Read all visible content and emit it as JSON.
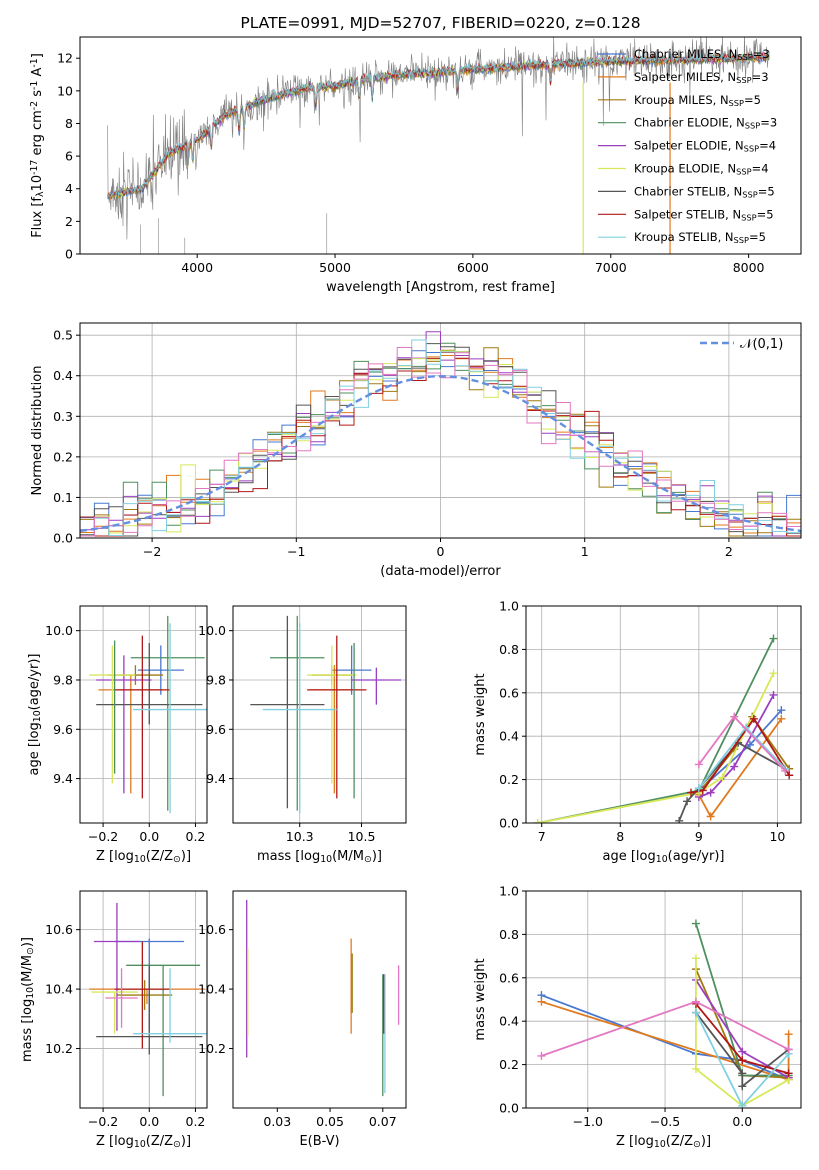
{
  "page_title": "PLATE=0991, MJD=52707, FIBERID=0220, z=0.128",
  "colors": {
    "chabrier_miles": "#4878d0",
    "salpeter_miles": "#e07a1f",
    "kroupa_miles": "#a07a10",
    "chabrier_elodie": "#4f8f5f",
    "salpeter_elodie": "#9b3fbf",
    "kroupa_elodie": "#d8e85a",
    "chabrier_stelib": "#555555",
    "salpeter_stelib": "#b01818",
    "kroupa_stelib": "#80d0e0",
    "pink": "#e377c2",
    "observed": "#7f7f7f",
    "normal": "#6490e0"
  },
  "chart_data": [
    {
      "id": "spectrum",
      "type": "line",
      "title": "PLATE=0991, MJD=52707, FIBERID=0220, z=0.128",
      "xlabel": "wavelength [Angstrom, rest frame]",
      "ylabel": "Flux [f$_\\lambda$10$^{-17}$ erg cm$^{-2}$ s$^{-1}$ A$^{-1}$]",
      "xlim": [
        3150,
        8380
      ],
      "ylim": [
        0,
        13.3
      ],
      "xticks": [
        4000,
        5000,
        6000,
        7000,
        8000
      ],
      "yticks": [
        0,
        2,
        4,
        6,
        8,
        10,
        12
      ],
      "legend_position": "upper-right",
      "legend": [
        {
          "label": "Chabrier MILES, N$_{SSP}$=3",
          "color": "#4878d0"
        },
        {
          "label": "Salpeter MILES, N$_{SSP}$=3",
          "color": "#e07a1f"
        },
        {
          "label": "Kroupa MILES, N$_{SSP}$=5",
          "color": "#a07a10"
        },
        {
          "label": "Chabrier ELODIE, N$_{SSP}$=3",
          "color": "#4f8f5f"
        },
        {
          "label": "Salpeter ELODIE, N$_{SSP}$=4",
          "color": "#9b3fbf"
        },
        {
          "label": "Kroupa ELODIE, N$_{SSP}$=4",
          "color": "#d8e85a"
        },
        {
          "label": "Chabrier STELIB, N$_{SSP}$=5",
          "color": "#555555"
        },
        {
          "label": "Salpeter STELIB, N$_{SSP}$=5",
          "color": "#b01818"
        },
        {
          "label": "Kroupa STELIB, N$_{SSP}$=5",
          "color": "#80d0e0"
        }
      ],
      "continuum_anchors": [
        [
          3350,
          3.6
        ],
        [
          3600,
          4.0
        ],
        [
          3800,
          6.2
        ],
        [
          4000,
          7.0
        ],
        [
          4200,
          8.5
        ],
        [
          4500,
          9.5
        ],
        [
          4800,
          10.2
        ],
        [
          5000,
          10.3
        ],
        [
          5200,
          10.7
        ],
        [
          5500,
          11.0
        ],
        [
          6000,
          11.3
        ],
        [
          6500,
          11.6
        ],
        [
          7000,
          11.8
        ],
        [
          7500,
          11.9
        ],
        [
          8000,
          12.0
        ],
        [
          8150,
          12.1
        ]
      ],
      "drop_lines": [
        {
          "x": 6800,
          "color": "#d8e85a"
        },
        {
          "x": 7430,
          "color": "#e07a1f"
        }
      ]
    },
    {
      "id": "residuals",
      "type": "line",
      "xlabel": "(data-model)/error",
      "ylabel": "Normed distribution",
      "xlim": [
        -2.5,
        2.5
      ],
      "ylim": [
        0,
        0.53
      ],
      "xticks": [
        -2,
        -1,
        0,
        1,
        2
      ],
      "yticks": [
        0.0,
        0.1,
        0.2,
        0.3,
        0.4,
        0.5
      ],
      "grid": true,
      "legend_position": "upper-right",
      "legend": [
        {
          "label": "$\\mathcal{N}(0,1)$",
          "color": "#6490e0",
          "style": "dashed"
        }
      ],
      "normal_curve": {
        "mean": 0,
        "std": 1
      },
      "hist_bin_width": 0.1,
      "hist_colors": [
        "#4878d0",
        "#e07a1f",
        "#a07a10",
        "#4f8f5f",
        "#9b3fbf",
        "#d8e85a",
        "#555555",
        "#b01818",
        "#80d0e0",
        "#e377c2"
      ]
    },
    {
      "id": "age_vs_Z",
      "type": "scatter",
      "xlabel": "Z [log$_{10}$(Z/Z$_\\odot$)]",
      "ylabel": "age  [log$_{10}$(age/yr)]",
      "xlim": [
        -0.3,
        0.25
      ],
      "ylim": [
        9.22,
        10.1
      ],
      "xticks": [
        -0.2,
        0.0,
        0.2
      ],
      "yticks": [
        9.4,
        9.6,
        9.8,
        10.0
      ],
      "grid": true,
      "points": [
        {
          "x": 0.05,
          "y": 9.84,
          "xerr": 0.1,
          "yerr_low": 0.1,
          "yerr_high": 0.1,
          "color": "#4878d0"
        },
        {
          "x": -0.08,
          "y": 9.76,
          "xerr": 0.14,
          "yerr_low": 0.42,
          "yerr_high": 0.06,
          "color": "#e07a1f"
        },
        {
          "x": -0.06,
          "y": 9.82,
          "xerr": 0.12,
          "yerr_low": 0.04,
          "yerr_high": 0.04,
          "color": "#a07a10"
        },
        {
          "x": 0.08,
          "y": 9.89,
          "xerr": 0.16,
          "yerr_low": 0.62,
          "yerr_high": 0.17,
          "color": "#4f8f5f"
        },
        {
          "x": -0.11,
          "y": 9.8,
          "xerr": 0.12,
          "yerr_low": 0.46,
          "yerr_high": 0.1,
          "color": "#9b3fbf"
        },
        {
          "x": -0.16,
          "y": 9.82,
          "xerr": 0.1,
          "yerr_low": 0.44,
          "yerr_high": 0.12,
          "color": "#d8e85a"
        },
        {
          "x": 0.0,
          "y": 9.7,
          "xerr": 0.23,
          "yerr_low": 0.08,
          "yerr_high": 0.25,
          "color": "#555555"
        },
        {
          "x": -0.03,
          "y": 9.76,
          "xerr": 0.12,
          "yerr_low": 0.44,
          "yerr_high": 0.22,
          "color": "#b01818"
        },
        {
          "x": 0.09,
          "y": 9.68,
          "xerr": 0.16,
          "yerr_low": 0.42,
          "yerr_high": 0.35,
          "color": "#80d0e0"
        },
        {
          "x": -0.15,
          "y": 9.92,
          "xerr": 0.0,
          "yerr_low": 0.5,
          "yerr_high": 0.04,
          "color": "#4f8f5f"
        }
      ]
    },
    {
      "id": "age_vs_mass",
      "type": "scatter",
      "xlabel": "mass [log$_{10}$(M/M$_\\odot$)]",
      "ylabel": "",
      "xlim": [
        9.98,
        10.68
      ],
      "ylim": [
        9.22,
        10.1
      ],
      "xticks": [
        10.25,
        10.5
      ],
      "yticks": [
        9.4,
        9.6,
        9.8,
        10.0
      ],
      "grid": true,
      "points": [
        {
          "x": 10.46,
          "y": 9.84,
          "xerr": 0.08,
          "yerr_low": 0.1,
          "yerr_high": 0.1,
          "color": "#4878d0"
        },
        {
          "x": 10.39,
          "y": 9.76,
          "xerr": 0.1,
          "yerr_low": 0.42,
          "yerr_high": 0.1,
          "color": "#e07a1f"
        },
        {
          "x": 10.38,
          "y": 9.82,
          "xerr": 0.08,
          "yerr_low": 0.04,
          "yerr_high": 0.04,
          "color": "#a07a10"
        },
        {
          "x": 10.24,
          "y": 9.89,
          "xerr": 0.11,
          "yerr_low": 0.62,
          "yerr_high": 0.17,
          "color": "#4f8f5f"
        },
        {
          "x": 10.56,
          "y": 9.8,
          "xerr": 0.1,
          "yerr_low": 0.1,
          "yerr_high": 0.05,
          "color": "#9b3fbf"
        },
        {
          "x": 10.38,
          "y": 9.82,
          "xerr": 0.1,
          "yerr_low": 0.44,
          "yerr_high": 0.12,
          "color": "#d8e85a"
        },
        {
          "x": 10.2,
          "y": 9.7,
          "xerr": 0.15,
          "yerr_low": 0.42,
          "yerr_high": 0.36,
          "color": "#555555"
        },
        {
          "x": 10.4,
          "y": 9.76,
          "xerr": 0.12,
          "yerr_low": 0.44,
          "yerr_high": 0.22,
          "color": "#b01818"
        },
        {
          "x": 10.25,
          "y": 9.68,
          "xerr": 0.15,
          "yerr_low": 0.42,
          "yerr_high": 0.35,
          "color": "#80d0e0"
        },
        {
          "x": 10.47,
          "y": 9.8,
          "xerr": 0.0,
          "yerr_low": 0.48,
          "yerr_high": 0.15,
          "color": "#4f8f5f"
        }
      ]
    },
    {
      "id": "weight_vs_age",
      "type": "line",
      "xlabel": "age  [log$_{10}$(age/yr)]",
      "ylabel": "mass weight",
      "xlim": [
        6.8,
        10.3
      ],
      "ylim": [
        0,
        1.0
      ],
      "xticks": [
        7,
        8,
        9,
        10
      ],
      "yticks": [
        0.0,
        0.2,
        0.4,
        0.6,
        0.8,
        1.0
      ],
      "grid": true,
      "series": [
        {
          "color": "#4878d0",
          "x": [
            9.0,
            9.65,
            10.05
          ],
          "y": [
            0.15,
            0.36,
            0.52
          ]
        },
        {
          "color": "#e07a1f",
          "x": [
            9.0,
            9.15,
            10.05
          ],
          "y": [
            0.13,
            0.03,
            0.48
          ]
        },
        {
          "color": "#a07a10",
          "x": [
            9.0,
            9.45,
            9.68,
            10.15
          ],
          "y": [
            0.14,
            0.34,
            0.49,
            0.25
          ]
        },
        {
          "color": "#4f8f5f",
          "x": [
            6.95,
            9.0,
            9.95
          ],
          "y": [
            0.0,
            0.15,
            0.85
          ]
        },
        {
          "color": "#9b3fbf",
          "x": [
            9.0,
            9.15,
            9.45,
            9.95
          ],
          "y": [
            0.12,
            0.14,
            0.26,
            0.59
          ]
        },
        {
          "color": "#d8e85a",
          "x": [
            6.95,
            9.0,
            9.3,
            9.95
          ],
          "y": [
            0.0,
            0.14,
            0.21,
            0.69
          ]
        },
        {
          "color": "#555555",
          "x": [
            8.75,
            8.85,
            9.0,
            9.5,
            10.1
          ],
          "y": [
            0.01,
            0.1,
            0.16,
            0.37,
            0.25
          ]
        },
        {
          "color": "#b01818",
          "x": [
            8.9,
            9.05,
            9.7,
            10.15
          ],
          "y": [
            0.14,
            0.15,
            0.48,
            0.22
          ]
        },
        {
          "color": "#80d0e0",
          "x": [
            9.0,
            9.6,
            10.1
          ],
          "y": [
            0.16,
            0.44,
            0.25
          ]
        },
        {
          "color": "#e377c2",
          "x": [
            9.0,
            9.45,
            10.1
          ],
          "y": [
            0.27,
            0.49,
            0.24
          ]
        }
      ]
    },
    {
      "id": "mass_vs_Z",
      "type": "scatter",
      "xlabel": "Z [log$_{10}$(Z/Z$_\\odot$)]",
      "ylabel": "mass [log$_{10}$(M/M$_\\odot$)]",
      "xlim": [
        -0.3,
        0.25
      ],
      "ylim": [
        10.0,
        10.73
      ],
      "xticks": [
        -0.2,
        0.0,
        0.2
      ],
      "yticks": [
        10.2,
        10.4,
        10.6
      ],
      "grid": true,
      "points": [
        {
          "x": 0.0,
          "y": 10.56,
          "xerr": 0.15,
          "yerr_low": 0.3,
          "yerr_high": 0.01,
          "color": "#4878d0"
        },
        {
          "x": -0.01,
          "y": 10.4,
          "xerr": 0.25,
          "yerr_low": 0.05,
          "yerr_high": 0.0,
          "color": "#e07a1f"
        },
        {
          "x": -0.02,
          "y": 10.38,
          "xerr": 0.12,
          "yerr_low": 0.05,
          "yerr_high": 0.05,
          "color": "#a07a10"
        },
        {
          "x": 0.06,
          "y": 10.48,
          "xerr": 0.16,
          "yerr_low": 0.44,
          "yerr_high": 0.0,
          "color": "#4f8f5f"
        },
        {
          "x": -0.14,
          "y": 10.56,
          "xerr": 0.1,
          "yerr_low": 0.3,
          "yerr_high": 0.13,
          "color": "#9b3fbf"
        },
        {
          "x": -0.15,
          "y": 10.39,
          "xerr": 0.1,
          "yerr_low": 0.14,
          "yerr_high": 0.0,
          "color": "#d8e85a"
        },
        {
          "x": 0.0,
          "y": 10.24,
          "xerr": 0.23,
          "yerr_low": 0.06,
          "yerr_high": 0.24,
          "color": "#555555"
        },
        {
          "x": -0.03,
          "y": 10.4,
          "xerr": 0.12,
          "yerr_low": 0.2,
          "yerr_high": 0.16,
          "color": "#b01818"
        },
        {
          "x": 0.09,
          "y": 10.25,
          "xerr": 0.16,
          "yerr_low": 0.03,
          "yerr_high": 0.22,
          "color": "#80d0e0"
        },
        {
          "x": -0.12,
          "y": 10.37,
          "xerr": 0.07,
          "yerr_low": 0.1,
          "yerr_high": 0.1,
          "color": "#e377c2"
        }
      ]
    },
    {
      "id": "mass_vs_EBV",
      "type": "scatter",
      "xlabel": "E(B-V)",
      "ylabel": "",
      "xlim": [
        0.004,
        0.086
      ],
      "ylim": [
        10.0,
        10.73
      ],
      "xticks": [
        0.025,
        0.05,
        0.075
      ],
      "yticks": [
        10.2,
        10.4,
        10.6
      ],
      "grid": false,
      "points": [
        {
          "x": 0.0105,
          "y": 10.4,
          "yerr_low": 0.23,
          "yerr_high": 0.3,
          "color": "#9b3fbf"
        },
        {
          "x": 0.011,
          "y": 10.38,
          "yerr_low": 0.14,
          "yerr_high": 0.16,
          "color": "#d8e85a"
        },
        {
          "x": 0.06,
          "y": 10.4,
          "yerr_low": 0.15,
          "yerr_high": 0.17,
          "color": "#e07a1f"
        },
        {
          "x": 0.0605,
          "y": 10.42,
          "yerr_low": 0.1,
          "yerr_high": 0.1,
          "color": "#a07a10"
        },
        {
          "x": 0.075,
          "y": 10.3,
          "yerr_low": 0.26,
          "yerr_high": 0.15,
          "color": "#4f8f5f"
        },
        {
          "x": 0.0755,
          "y": 10.35,
          "yerr_low": 0.1,
          "yerr_high": 0.1,
          "color": "#b01818"
        },
        {
          "x": 0.076,
          "y": 10.25,
          "yerr_low": 0.2,
          "yerr_high": 0.2,
          "color": "#80d0e0"
        },
        {
          "x": 0.0825,
          "y": 10.38,
          "yerr_low": 0.1,
          "yerr_high": 0.1,
          "color": "#e377c2"
        }
      ]
    },
    {
      "id": "weight_vs_Z",
      "type": "line",
      "xlabel": "Z [log$_{10}$(Z/Z$_\\odot$)]",
      "ylabel": "mass weight",
      "xlim": [
        -1.4,
        0.38
      ],
      "ylim": [
        0,
        1.0
      ],
      "xticks": [
        -1.0,
        -0.5,
        0.0
      ],
      "yticks": [
        0.0,
        0.2,
        0.4,
        0.6,
        0.8,
        1.0
      ],
      "grid": true,
      "series": [
        {
          "color": "#4878d0",
          "x": [
            -1.3,
            -0.3,
            0.0,
            0.3
          ],
          "y": [
            0.52,
            0.25,
            0.22,
            0.13
          ]
        },
        {
          "color": "#e07a1f",
          "x": [
            -1.3,
            0.3,
            0.3
          ],
          "y": [
            0.49,
            0.13,
            0.34
          ]
        },
        {
          "color": "#a07a10",
          "x": [
            -0.3,
            0.0,
            0.3
          ],
          "y": [
            0.64,
            0.15,
            0.14
          ]
        },
        {
          "color": "#4f8f5f",
          "x": [
            -0.3,
            0.0,
            0.3
          ],
          "y": [
            0.85,
            0.15,
            0.15
          ]
        },
        {
          "color": "#9b3fbf",
          "x": [
            -0.3,
            0.0,
            0.3
          ],
          "y": [
            0.59,
            0.26,
            0.14
          ]
        },
        {
          "color": "#d8e85a",
          "x": [
            -0.3,
            -0.3,
            0.0,
            0.3
          ],
          "y": [
            0.69,
            0.18,
            0.01,
            0.13
          ]
        },
        {
          "color": "#555555",
          "x": [
            -0.3,
            0.0,
            0.0,
            0.3
          ],
          "y": [
            0.44,
            0.16,
            0.1,
            0.27
          ]
        },
        {
          "color": "#b01818",
          "x": [
            -0.3,
            0.0,
            0.3
          ],
          "y": [
            0.48,
            0.22,
            0.16
          ]
        },
        {
          "color": "#80d0e0",
          "x": [
            -0.3,
            0.0,
            0.3
          ],
          "y": [
            0.44,
            0.01,
            0.25
          ]
        },
        {
          "color": "#e377c2",
          "x": [
            -1.3,
            -0.3,
            0.3
          ],
          "y": [
            0.24,
            0.49,
            0.27
          ]
        }
      ]
    }
  ]
}
